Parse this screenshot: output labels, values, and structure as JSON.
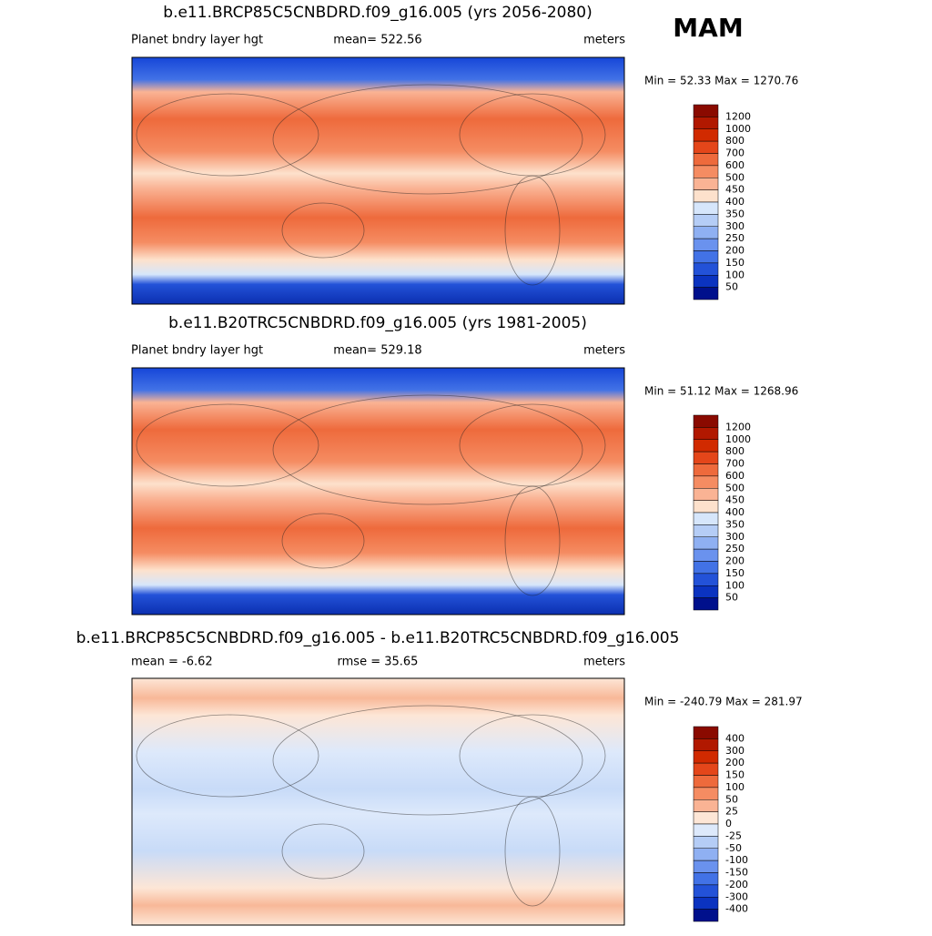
{
  "season": "MAM",
  "panels": [
    {
      "title": "b.e11.BRCP85C5CNBDRD.f09_g16.005 (yrs 2056-2080)",
      "left": "Planet bndry layer hgt",
      "center": "mean= 522.56",
      "right": "meters",
      "minmax": "Min =  52.33 Max = 1270.76",
      "colorbar": {
        "labels": [
          "1200",
          "1000",
          "800",
          "700",
          "600",
          "500",
          "450",
          "400",
          "350",
          "300",
          "250",
          "200",
          "150",
          "100",
          "50"
        ],
        "colors": [
          "#8a0a00",
          "#b11800",
          "#d12a00",
          "#e4461a",
          "#ee6a3c",
          "#f58c62",
          "#fab394",
          "#fde1cc",
          "#d6e6fb",
          "#b5cdf6",
          "#8fb0f2",
          "#6a92ee",
          "#4272e6",
          "#2352d8",
          "#0b33c0",
          "#00108c"
        ]
      }
    },
    {
      "title": "b.e11.B20TRC5CNBDRD.f09_g16.005 (yrs 1981-2005)",
      "left": "Planet bndry layer hgt",
      "center": "mean= 529.18",
      "right": "meters",
      "minmax": "Min =  51.12 Max = 1268.96",
      "colorbar": {
        "labels": [
          "1200",
          "1000",
          "800",
          "700",
          "600",
          "500",
          "450",
          "400",
          "350",
          "300",
          "250",
          "200",
          "150",
          "100",
          "50"
        ],
        "colors": [
          "#8a0a00",
          "#b11800",
          "#d12a00",
          "#e4461a",
          "#ee6a3c",
          "#f58c62",
          "#fab394",
          "#fde1cc",
          "#d6e6fb",
          "#b5cdf6",
          "#8fb0f2",
          "#6a92ee",
          "#4272e6",
          "#2352d8",
          "#0b33c0",
          "#00108c"
        ]
      }
    },
    {
      "title": "b.e11.BRCP85C5CNBDRD.f09_g16.005 - b.e11.B20TRC5CNBDRD.f09_g16.005",
      "left": "mean =  -6.62",
      "center": "rmse =  35.65",
      "right": "meters",
      "minmax": "Min = -240.79 Max = 281.97",
      "colorbar": {
        "labels": [
          "400",
          "300",
          "200",
          "150",
          "100",
          "50",
          "25",
          "0",
          "-25",
          "-50",
          "-100",
          "-150",
          "-200",
          "-300",
          "-400"
        ],
        "colors": [
          "#8a0a00",
          "#b11800",
          "#d12a00",
          "#e4461a",
          "#ee6a3c",
          "#f58c62",
          "#fab394",
          "#fde6d6",
          "#dde9fb",
          "#b5cdf6",
          "#8fb0f2",
          "#6a92ee",
          "#4272e6",
          "#2352d8",
          "#0b33c0",
          "#00108c"
        ]
      }
    }
  ]
}
